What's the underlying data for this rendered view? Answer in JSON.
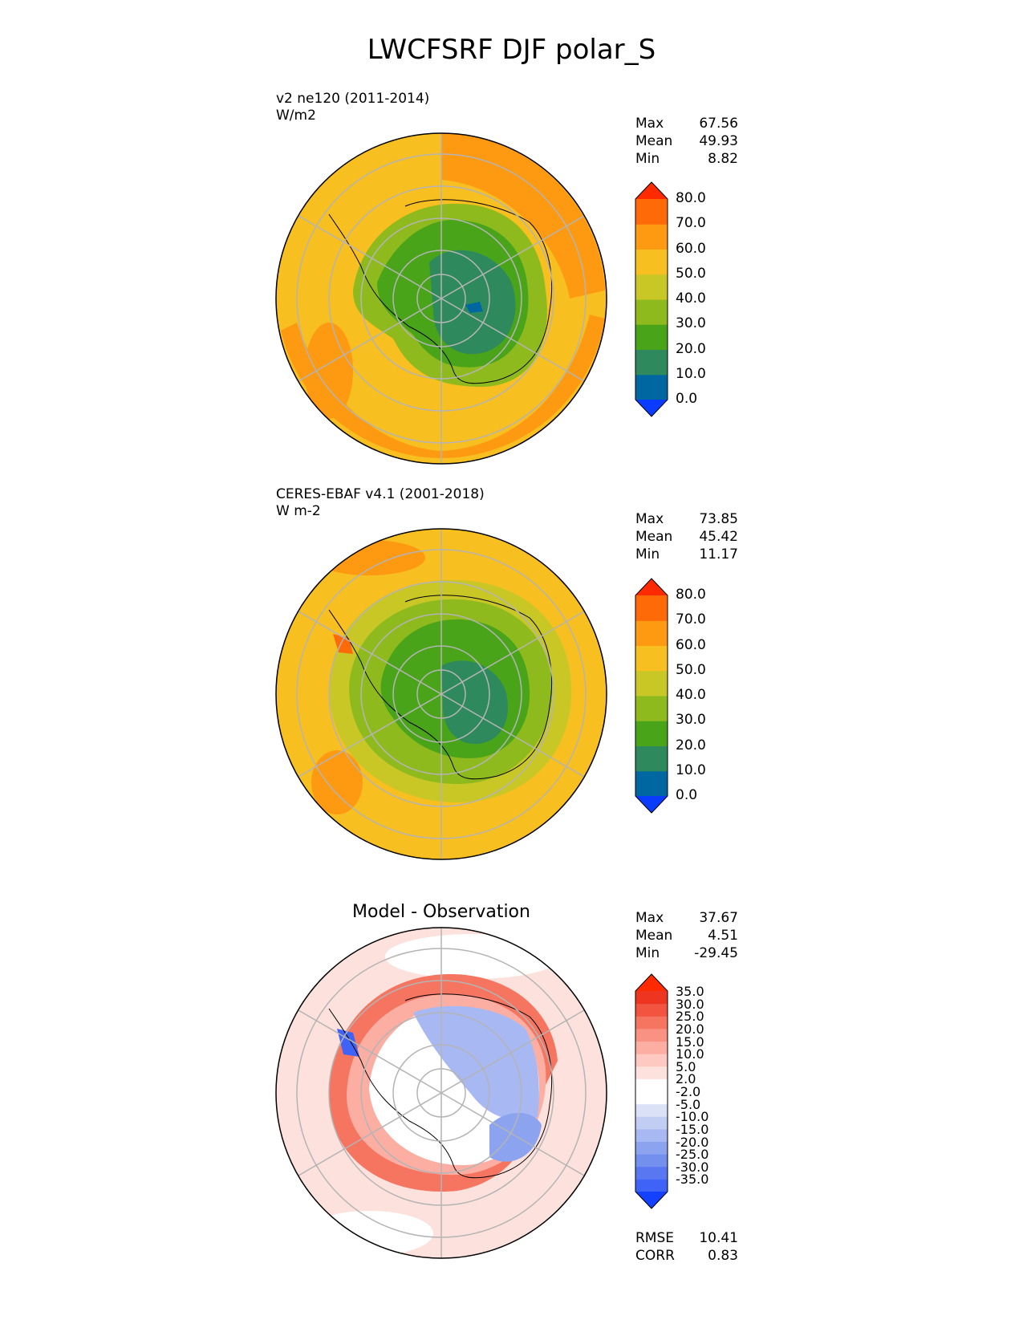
{
  "title": "LWCFSRF DJF polar_S",
  "colors": {
    "abs_levels": [
      "#0a3cff",
      "#0067a0",
      "#2e8a5c",
      "#4aa41a",
      "#8fba1e",
      "#c8c726",
      "#f8bf20",
      "#fd9a12",
      "#ff6a08",
      "#ff2a00"
    ],
    "diff_levels": [
      "#1440ff",
      "#3f63f6",
      "#5877f0",
      "#7390ee",
      "#8ca4f0",
      "#a8b8f2",
      "#c2cdf4",
      "#dbe2f8",
      "#ffffff",
      "#ffffff",
      "#fde1dc",
      "#fdc9c0",
      "#fcaea3",
      "#f99282",
      "#f67560",
      "#f25440",
      "#ee3520",
      "#ff2a00"
    ]
  },
  "panels": [
    {
      "subtitle": "v2 ne120 (2011-2014)",
      "units": "W/m2",
      "stats": {
        "max_label": "Max",
        "max": "67.56",
        "mean_label": "Mean",
        "mean": "49.93",
        "min_label": "Min",
        "min": "8.82"
      },
      "colorbar_ticks": [
        "80.0",
        "70.0",
        "60.0",
        "50.0",
        "40.0",
        "30.0",
        "20.0",
        "10.0",
        "0.0"
      ]
    },
    {
      "subtitle": "CERES-EBAF v4.1 (2001-2018)",
      "units": "W m-2",
      "stats": {
        "max_label": "Max",
        "max": "73.85",
        "mean_label": "Mean",
        "mean": "45.42",
        "min_label": "Min",
        "min": "11.17"
      },
      "colorbar_ticks": [
        "80.0",
        "70.0",
        "60.0",
        "50.0",
        "40.0",
        "30.0",
        "20.0",
        "10.0",
        "0.0"
      ]
    },
    {
      "title": "Model - Observation",
      "stats": {
        "max_label": "Max",
        "max": "37.67",
        "mean_label": "Mean",
        "mean": "4.51",
        "min_label": "Min",
        "min": "-29.45"
      },
      "colorbar_ticks": [
        "35.0",
        "30.0",
        "25.0",
        "20.0",
        "15.0",
        "10.0",
        "5.0",
        "2.0",
        "-2.0",
        "-5.0",
        "-10.0",
        "-15.0",
        "-20.0",
        "-25.0",
        "-30.0",
        "-35.0"
      ],
      "metrics": {
        "rmse_label": "RMSE",
        "rmse": "10.41",
        "corr_label": "CORR",
        "corr": "0.83"
      }
    }
  ]
}
